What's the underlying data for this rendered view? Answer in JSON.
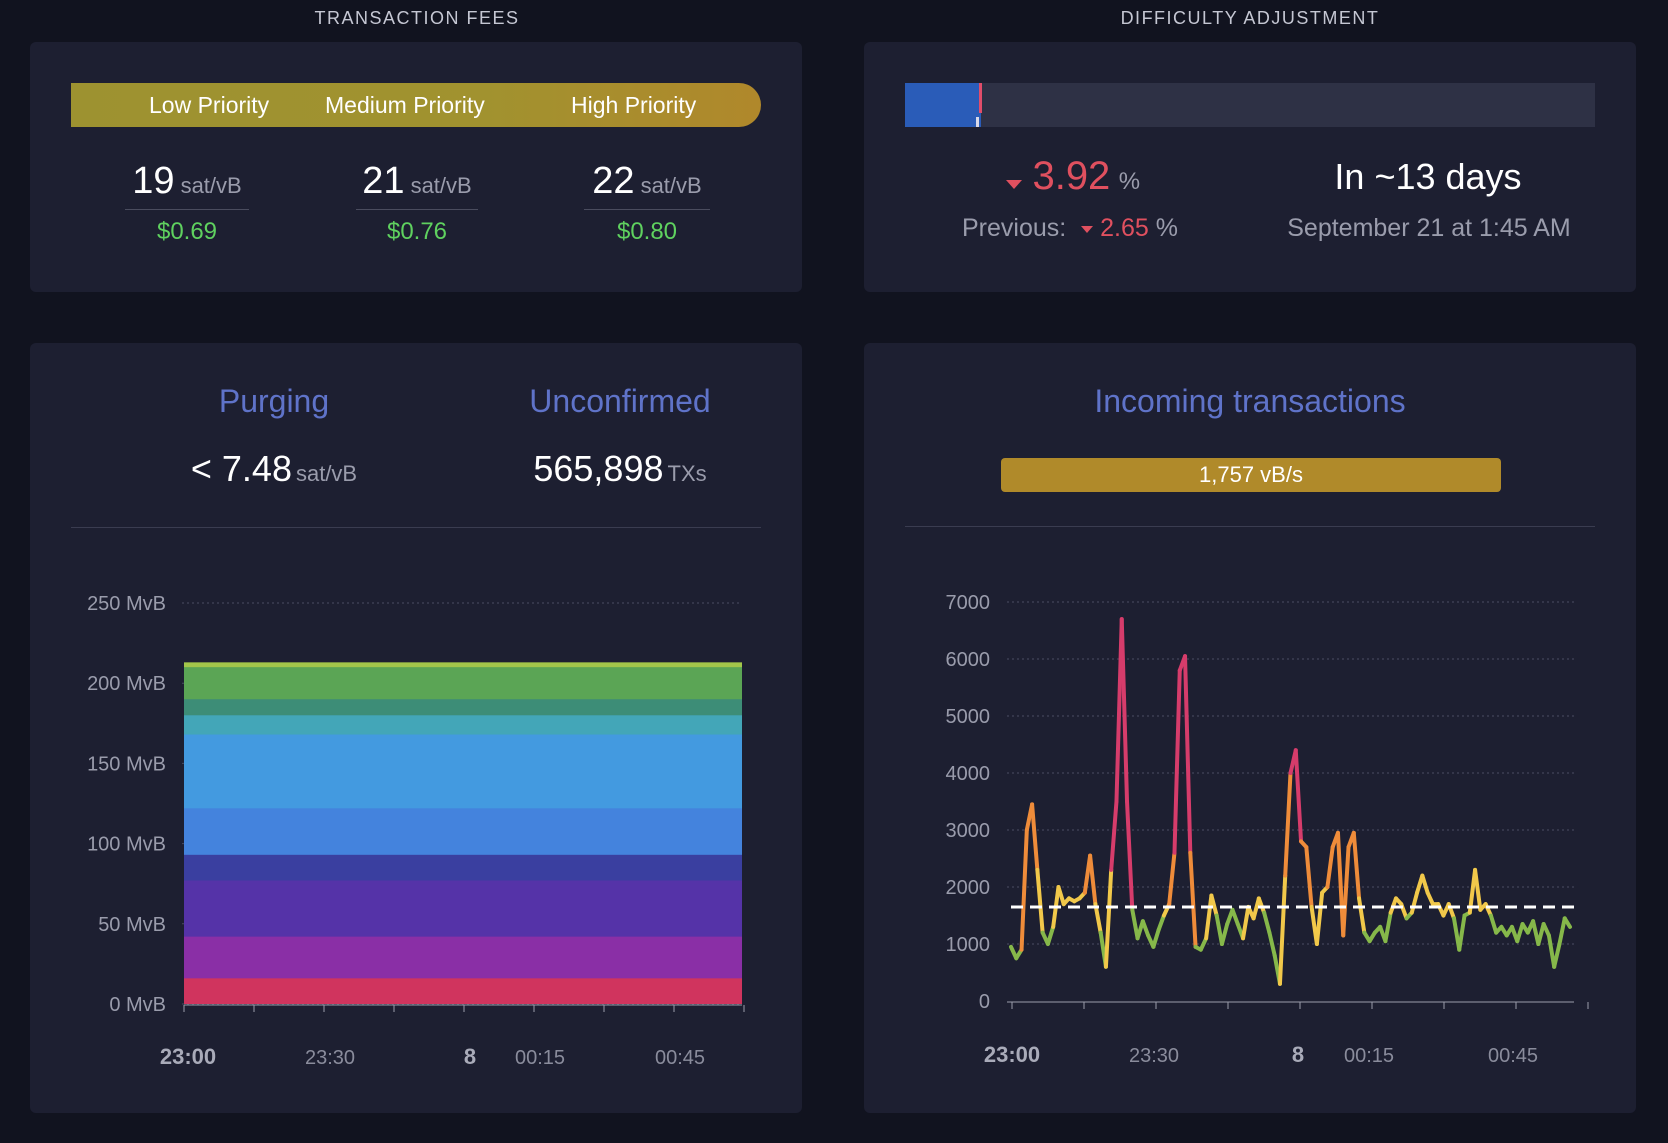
{
  "fees": {
    "section_title": "TRANSACTION FEES",
    "priorities": [
      {
        "label": "Low Priority",
        "rate": "19",
        "unit": "sat/vB",
        "usd": "$0.69"
      },
      {
        "label": "Medium Priority",
        "rate": "21",
        "unit": "sat/vB",
        "usd": "$0.76"
      },
      {
        "label": "High Priority",
        "rate": "22",
        "unit": "sat/vB",
        "usd": "$0.80"
      }
    ]
  },
  "difficulty": {
    "section_title": "DIFFICULTY ADJUSTMENT",
    "progress_fraction": 0.11,
    "change": "3.92",
    "change_unit": "%",
    "previous_label": "Previous:",
    "previous": "2.65",
    "previous_unit": "%",
    "eta": "In ~13 days",
    "eta_date": "September 21 at 1:45 AM"
  },
  "mempool": {
    "purging_label": "Purging",
    "purging_value": "< 7.48",
    "purging_unit": "sat/vB",
    "unconfirmed_label": "Unconfirmed",
    "unconfirmed_value": "565,898",
    "unconfirmed_unit": "TXs"
  },
  "incoming": {
    "title": "Incoming transactions",
    "rate": "1,757 vB/s"
  },
  "colors": {
    "background": "#11131f",
    "card": "#1d1f31",
    "accent_blue": "#5f73c9",
    "green_usd": "#5fd15f",
    "red": "#e0505f",
    "gold": "#b08a2a"
  },
  "chart_data": [
    {
      "type": "area",
      "title": "",
      "xlabel": "",
      "ylabel": "",
      "ylim": [
        0,
        250
      ],
      "y_ticks": [
        "0 MvB",
        "50 MvB",
        "100 MvB",
        "150 MvB",
        "200 MvB",
        "250 MvB"
      ],
      "x_ticks": [
        {
          "label": "23:00",
          "bold": true
        },
        {
          "label": "23:30",
          "bold": false
        },
        {
          "label": "8",
          "bold": true
        },
        {
          "label": "00:15",
          "bold": false
        },
        {
          "label": "00:45",
          "bold": false
        }
      ],
      "grid": true,
      "stacked_layers": [
        {
          "top": 16,
          "color": "#d0345e"
        },
        {
          "top": 42,
          "color": "#8a2fa6"
        },
        {
          "top": 77,
          "color": "#5533a8"
        },
        {
          "top": 93,
          "color": "#3a3fa0"
        },
        {
          "top": 122,
          "color": "#4483dd"
        },
        {
          "top": 168,
          "color": "#439ae0"
        },
        {
          "top": 180,
          "color": "#43a6b8"
        },
        {
          "top": 190,
          "color": "#3d8d77"
        },
        {
          "top": 210,
          "color": "#5ba555"
        },
        {
          "top": 213,
          "color": "#a3c64a"
        }
      ]
    },
    {
      "type": "line",
      "title": "",
      "xlabel": "",
      "ylabel": "",
      "ylim": [
        0,
        7000
      ],
      "y_ticks": [
        "0",
        "1000",
        "2000",
        "3000",
        "4000",
        "5000",
        "6000",
        "7000"
      ],
      "x_ticks": [
        {
          "label": "23:00",
          "bold": true
        },
        {
          "label": "23:30",
          "bold": false
        },
        {
          "label": "8",
          "bold": true
        },
        {
          "label": "00:15",
          "bold": false
        },
        {
          "label": "00:45",
          "bold": false
        }
      ],
      "grid": true,
      "reference_line": 1650,
      "values": [
        950,
        750,
        900,
        3000,
        3450,
        2300,
        1200,
        1000,
        1300,
        2000,
        1700,
        1800,
        1750,
        1800,
        1900,
        2550,
        1700,
        1200,
        600,
        2300,
        3500,
        6700,
        3500,
        1600,
        1100,
        1400,
        1150,
        950,
        1250,
        1500,
        1700,
        2600,
        5800,
        6050,
        2600,
        950,
        900,
        1100,
        1850,
        1500,
        1000,
        1350,
        1600,
        1350,
        1100,
        1650,
        1450,
        1800,
        1550,
        1200,
        800,
        300,
        2200,
        4000,
        4400,
        2800,
        2700,
        1650,
        1000,
        1900,
        2000,
        2700,
        2950,
        1150,
        2700,
        2950,
        1800,
        1200,
        1050,
        1200,
        1300,
        1050,
        1550,
        1800,
        1700,
        1450,
        1550,
        1900,
        2200,
        1900,
        1700,
        1700,
        1500,
        1700,
        1450,
        900,
        1500,
        1550,
        2300,
        1600,
        1700,
        1500,
        1200,
        1300,
        1150,
        1300,
        1050,
        1350,
        1200,
        1400,
        1000,
        1350,
        1150,
        600,
        1000,
        1450,
        1300
      ]
    }
  ]
}
